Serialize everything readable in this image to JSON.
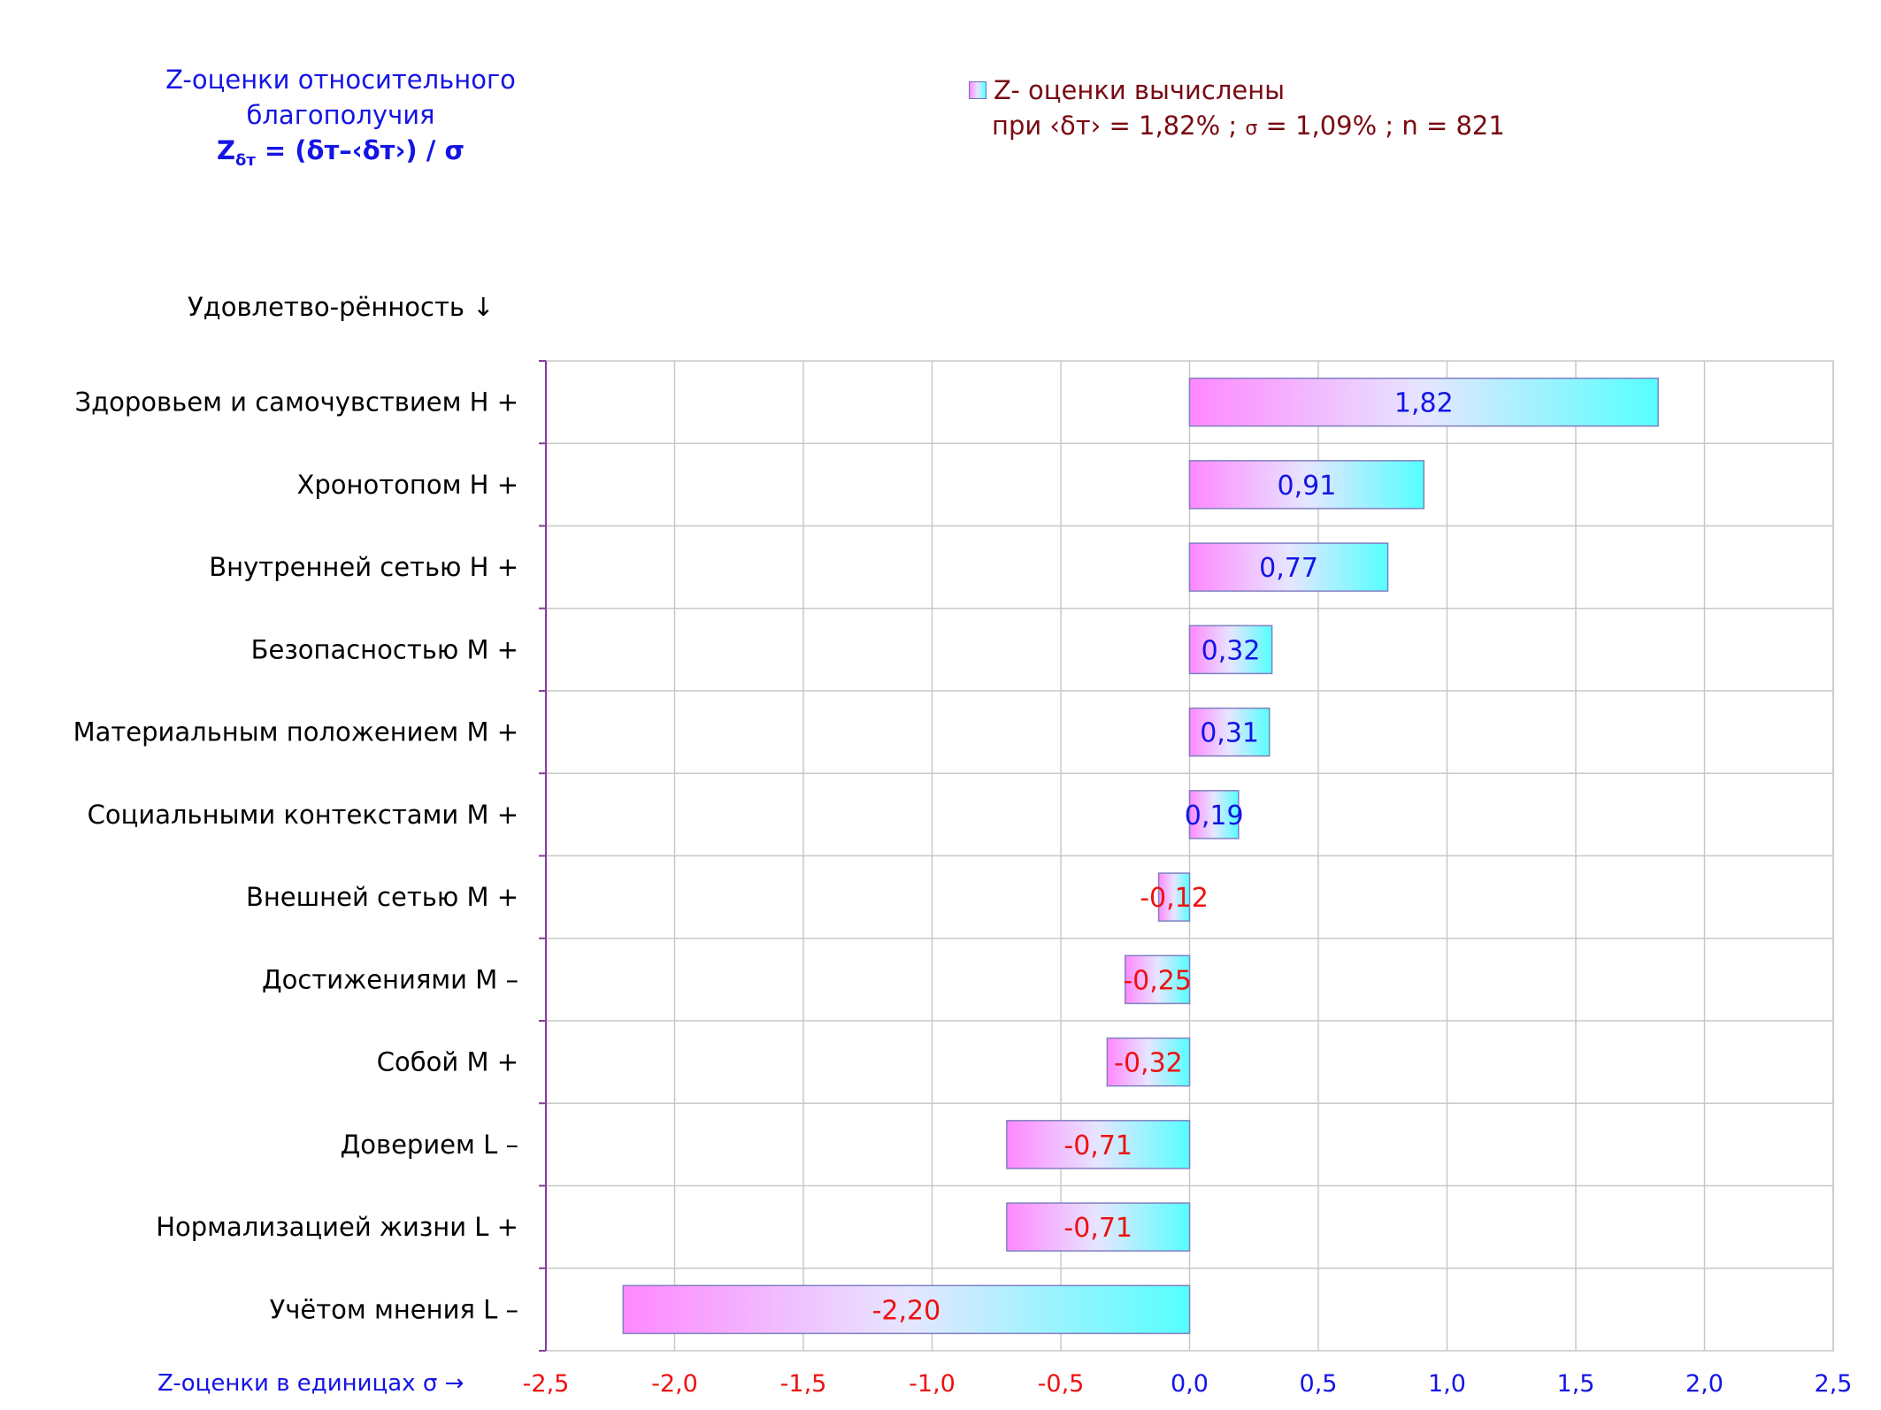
{
  "title": {
    "line1": "Z-оценки  относительного",
    "line2": "благополучия",
    "formula_prefix": "Z",
    "formula_sub": "δт",
    "formula_body": " = (δт–‹δт›) / σ"
  },
  "legend": {
    "line1": "Z- оценки вычислены",
    "line2_a": "при ‹δт› = 1,82% ; ",
    "line2_sigma": "σ",
    "line2_b": " = 1,09% ; n = 821"
  },
  "category_header": "Удовлетво-рённость ↓",
  "x_axis_caption": "Z-оценки в единицах σ →",
  "colors": {
    "bar_gradient_left": "#ff88ff",
    "bar_gradient_mid": "#e6e6ff",
    "bar_gradient_right": "#55ffff",
    "bar_border": "#8080c0",
    "positive_label": "#1414e6",
    "negative_label": "#ee1111",
    "tick_negative": "#ee1111",
    "tick_positive": "#1414e6",
    "grid": "#c8c8c8",
    "y_axis": "#8a3a9a"
  },
  "chart_data": {
    "type": "bar",
    "orientation": "horizontal",
    "categories": [
      "Здоровьем и самочувствием  Н +",
      "Хронотопом  Н +",
      "Внутренней сетью  Н +",
      "Безопасностью  М +",
      "Материальным положением  М +",
      "Социальными контекстами  М +",
      "Внешней сетью  М +",
      "Достижениями  М –",
      "Собой  М +",
      "Доверием  L –",
      "Нормализацией жизни  L +",
      "Учётом мнения  L –"
    ],
    "values": [
      1.82,
      0.91,
      0.77,
      0.32,
      0.31,
      0.19,
      -0.12,
      -0.25,
      -0.32,
      -0.71,
      -0.71,
      -2.2
    ],
    "value_labels": [
      "1,82",
      "0,91",
      "0,77",
      "0,32",
      "0,31",
      "0,19",
      "-0,12",
      "-0,25",
      "-0,32",
      "-0,71",
      "-0,71",
      "-2,20"
    ],
    "xlim": [
      -2.5,
      2.5
    ],
    "x_ticks": [
      -2.5,
      -2.0,
      -1.5,
      -1.0,
      -0.5,
      0.0,
      0.5,
      1.0,
      1.5,
      2.0,
      2.5
    ],
    "x_tick_labels": [
      "-2,5",
      "-2,0",
      "-1,5",
      "-1,0",
      "-0,5",
      "0,0",
      "0,5",
      "1,0",
      "1,5",
      "2,0",
      "2,5"
    ],
    "grid": true,
    "legend_position": "top-right"
  }
}
